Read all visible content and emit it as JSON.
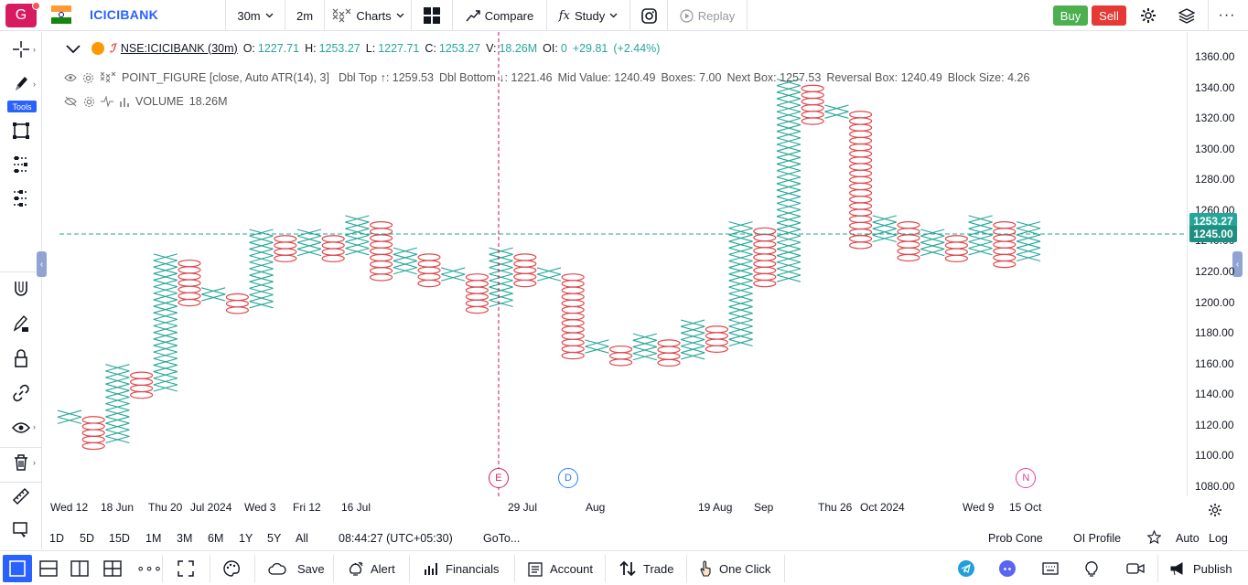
{
  "header": {
    "avatar_letter": "G",
    "symbol": "ICICIBANK",
    "interval": "30m",
    "box_interval": "2m",
    "charts_label": "Charts",
    "compare_label": "Compare",
    "study_label": "Study",
    "replay_label": "Replay",
    "buy_label": "Buy",
    "sell_label": "Sell"
  },
  "left_toolbar": {
    "tools_badge": "Tools"
  },
  "legend": {
    "symbol_title": "NSE:ICICIBANK (30m)",
    "o_label": "O:",
    "o_value": "1227.71",
    "h_label": "H:",
    "h_value": "1253.27",
    "l_label": "L:",
    "l_value": "1227.71",
    "c_label": "C:",
    "c_value": "1253.27",
    "v_label": "V:",
    "v_value": "18.26M",
    "oi_label": "OI:",
    "oi_value": "0",
    "change": "+29.81",
    "change_pct": "(+2.44%)",
    "study_name": "POINT_FIGURE [close, Auto ATR(14), 3]",
    "dbl_top": "Dbl Top ↑: 1259.53",
    "dbl_bottom": "Dbl Bottom ↓: 1221.46",
    "mid_value": "Mid Value: 1240.49",
    "boxes": "Boxes: 7.00",
    "next_box": "Next Box: 1257.53",
    "reversal_box": "Reversal Box: 1240.49",
    "block_size": "Block Size: 4.26",
    "volume_label": "VOLUME",
    "volume_value": "18.26M"
  },
  "chart_data": {
    "type": "point_and_figure",
    "box_size": 4.26,
    "ylim": [
      1070,
      1370
    ],
    "y_ticks": [
      1080,
      1100,
      1120,
      1140,
      1160,
      1180,
      1200,
      1220,
      1240,
      1260,
      1280,
      1300,
      1320,
      1340,
      1360
    ],
    "x_ticks": [
      "Wed 12",
      "18 Jun",
      "Thu 20",
      "Jul 2024",
      "Wed 3",
      "Fri 12",
      "16 Jul",
      "29 Jul",
      "Aug",
      "19 Aug",
      "Sep",
      "Thu 26",
      "Oct 2024",
      "Wed 9",
      "15 Oct"
    ],
    "columns": [
      {
        "t": "X",
        "lo": 1122,
        "hi": 1130
      },
      {
        "t": "O",
        "lo": 1104,
        "hi": 1126
      },
      {
        "t": "X",
        "lo": 1108,
        "hi": 1160
      },
      {
        "t": "O",
        "lo": 1138,
        "hi": 1155
      },
      {
        "t": "X",
        "lo": 1142,
        "hi": 1232
      },
      {
        "t": "O",
        "lo": 1197,
        "hi": 1228
      },
      {
        "t": "X",
        "lo": 1201,
        "hi": 1210
      },
      {
        "t": "O",
        "lo": 1193,
        "hi": 1206
      },
      {
        "t": "X",
        "lo": 1197,
        "hi": 1248
      },
      {
        "t": "O",
        "lo": 1227,
        "hi": 1244
      },
      {
        "t": "X",
        "lo": 1231,
        "hi": 1248
      },
      {
        "t": "O",
        "lo": 1227,
        "hi": 1244
      },
      {
        "t": "X",
        "lo": 1231,
        "hi": 1257
      },
      {
        "t": "O",
        "lo": 1214,
        "hi": 1253
      },
      {
        "t": "X",
        "lo": 1218,
        "hi": 1236
      },
      {
        "t": "O",
        "lo": 1210,
        "hi": 1232
      },
      {
        "t": "X",
        "lo": 1214,
        "hi": 1223
      },
      {
        "t": "O",
        "lo": 1193,
        "hi": 1219
      },
      {
        "t": "X",
        "lo": 1197,
        "hi": 1236
      },
      {
        "t": "O",
        "lo": 1210,
        "hi": 1232
      },
      {
        "t": "X",
        "lo": 1214,
        "hi": 1223
      },
      {
        "t": "O",
        "lo": 1163,
        "hi": 1219
      },
      {
        "t": "X",
        "lo": 1167,
        "hi": 1176
      },
      {
        "t": "O",
        "lo": 1159,
        "hi": 1172
      },
      {
        "t": "X",
        "lo": 1163,
        "hi": 1180
      },
      {
        "t": "O",
        "lo": 1159,
        "hi": 1176
      },
      {
        "t": "X",
        "lo": 1163,
        "hi": 1189
      },
      {
        "t": "O",
        "lo": 1167,
        "hi": 1185
      },
      {
        "t": "X",
        "lo": 1172,
        "hi": 1253
      },
      {
        "t": "O",
        "lo": 1210,
        "hi": 1249
      },
      {
        "t": "X",
        "lo": 1214,
        "hi": 1346
      },
      {
        "t": "O",
        "lo": 1317,
        "hi": 1342
      },
      {
        "t": "X",
        "lo": 1321,
        "hi": 1329
      },
      {
        "t": "O",
        "lo": 1236,
        "hi": 1325
      },
      {
        "t": "X",
        "lo": 1240,
        "hi": 1257
      },
      {
        "t": "O",
        "lo": 1227,
        "hi": 1253
      },
      {
        "t": "X",
        "lo": 1231,
        "hi": 1248
      },
      {
        "t": "O",
        "lo": 1227,
        "hi": 1244
      },
      {
        "t": "X",
        "lo": 1231,
        "hi": 1257
      },
      {
        "t": "O",
        "lo": 1223,
        "hi": 1253
      },
      {
        "t": "X",
        "lo": 1227,
        "hi": 1253
      }
    ],
    "last_price": 1253.27,
    "last_price_label": "1253.27",
    "mid_line": 1245.0,
    "mid_line_label": "1245.00",
    "colors": {
      "x": "#26a69a",
      "o": "#e0474c",
      "crosshair": "#c2185b",
      "axis_label": "#26a69a"
    },
    "events": [
      {
        "letter": "E",
        "col": 17.9,
        "color": "#d81b60"
      },
      {
        "letter": "D",
        "col": 20.8,
        "color": "#2979ff"
      },
      {
        "letter": "N",
        "col": 39.9,
        "color": "#e040a0"
      }
    ]
  },
  "range_bar": {
    "ranges": [
      "1D",
      "5D",
      "15D",
      "1M",
      "3M",
      "6M",
      "1Y",
      "5Y",
      "All"
    ],
    "clock": "08:44:27 (UTC+05:30)",
    "goto": "GoTo...",
    "prob_cone": "Prob Cone",
    "oi_profile": "OI Profile",
    "auto": "Auto",
    "log": "Log"
  },
  "bottom_bar": {
    "save": "Save",
    "alert": "Alert",
    "financials": "Financials",
    "account": "Account",
    "trade": "Trade",
    "one_click": "One Click",
    "publish": "Publish"
  }
}
